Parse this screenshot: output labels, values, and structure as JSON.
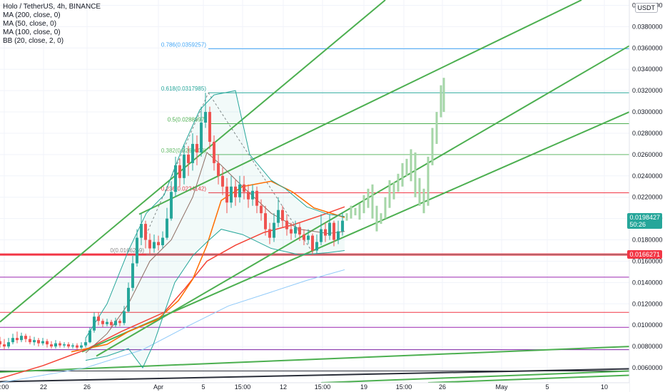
{
  "legend": {
    "title": "Holo / TetherUS, 4h, BINANCE",
    "indicators": [
      "MA (200, close, 0)",
      "MA (50, close, 0)",
      "MA (100, close, 0)",
      "BB (20, close, 2, 0)"
    ]
  },
  "currency_label": "USDT",
  "chart_data": {
    "type": "candlestick",
    "y_ticks": [
      "0.0400000",
      "0.0380000",
      "0.0360000",
      "0.0340000",
      "0.0320000",
      "0.0300000",
      "0.0280000",
      "0.0260000",
      "0.0240000",
      "0.0220000",
      "0.0200000",
      "0.0180000",
      "0.0160000",
      "0.0140000",
      "0.0120000",
      "0.0100000",
      "0.0080000",
      "0.0060000"
    ],
    "y_tick_values": [
      0.04,
      0.038,
      0.036,
      0.034,
      0.032,
      0.03,
      0.028,
      0.026,
      0.024,
      0.022,
      0.02,
      0.018,
      0.016,
      0.014,
      0.012,
      0.01,
      0.008,
      0.006
    ],
    "x_ticks": [
      ":00",
      "22",
      "26",
      "Apr",
      "5",
      "15:00",
      "12",
      "15:00",
      "19",
      "15:00",
      "26",
      "May",
      "5",
      "10"
    ],
    "ylim": [
      0.0046,
      0.0405
    ],
    "current_price": {
      "value": "0.0198427",
      "countdown": "50:26",
      "color": "#26a69a"
    },
    "support_price": {
      "value": "0.0166271",
      "color": "#f23645"
    },
    "fib_levels": [
      {
        "label": "0.786(0.0359257)",
        "value": 0.0359257,
        "color": "#42a5f5"
      },
      {
        "label": "0.618(0.0317985)",
        "value": 0.0317985,
        "color": "#26a69a"
      },
      {
        "label": "0.5(0.0288997)",
        "value": 0.0288997,
        "color": "#4caf50"
      },
      {
        "label": "0.382(0.0260009)",
        "value": 0.0260009,
        "color": "#66bb6a"
      },
      {
        "label": "0.236(0.0224142)",
        "value": 0.0224142,
        "color": "#f23645"
      },
      {
        "label": "0(0.0166269)",
        "value": 0.0166269,
        "color": "#888888"
      }
    ],
    "horizontal_levels": [
      {
        "value": 0.0166271,
        "color": "#f23645"
      },
      {
        "value": 0.0145,
        "color": "#9c27b0"
      },
      {
        "value": 0.0112,
        "color": "#f23645"
      },
      {
        "value": 0.0098,
        "color": "#9c27b0"
      },
      {
        "value": 0.0077,
        "color": "#7b1fa2"
      },
      {
        "value": 0.0057,
        "color": "#2a2e39"
      }
    ],
    "series": [
      {
        "name": "MA (200, close, 0)",
        "color": "#90caf9",
        "points": [
          [
            0,
            0.0046
          ],
          [
            120,
            0.006
          ],
          [
            200,
            0.0077
          ],
          [
            260,
            0.0098
          ],
          [
            320,
            0.0118
          ],
          [
            380,
            0.0131
          ],
          [
            430,
            0.0142
          ],
          [
            483,
            0.0152
          ]
        ]
      },
      {
        "name": "MA (50, close, 0)",
        "color": "#f44336",
        "points": [
          [
            0,
            0.005
          ],
          [
            60,
            0.0062
          ],
          [
            120,
            0.0077
          ],
          [
            170,
            0.0094
          ],
          [
            230,
            0.0112
          ],
          [
            260,
            0.0135
          ],
          [
            290,
            0.016
          ],
          [
            330,
            0.0175
          ],
          [
            370,
            0.0187
          ],
          [
            410,
            0.0194
          ],
          [
            450,
            0.0203
          ],
          [
            483,
            0.0211
          ]
        ]
      },
      {
        "name": "MA (100, close, 0)",
        "color": "#ff6d00",
        "points": [
          [
            100,
            0.0075
          ],
          [
            150,
            0.0082
          ],
          [
            180,
            0.0094
          ],
          [
            220,
            0.0105
          ],
          [
            250,
            0.0123
          ],
          [
            270,
            0.0143
          ],
          [
            290,
            0.0175
          ],
          [
            310,
            0.0217
          ],
          [
            340,
            0.023
          ],
          [
            380,
            0.0235
          ],
          [
            410,
            0.0225
          ],
          [
            440,
            0.021
          ],
          [
            483,
            0.0201
          ]
        ]
      },
      {
        "name": "BB (20, close, 2, 0) middle",
        "color": "#8d6e63",
        "points": [
          [
            120,
            0.0074
          ],
          [
            150,
            0.0092
          ],
          [
            180,
            0.012
          ],
          [
            210,
            0.016
          ],
          [
            240,
            0.018
          ],
          [
            270,
            0.022
          ],
          [
            290,
            0.0262
          ],
          [
            310,
            0.025
          ],
          [
            340,
            0.023
          ],
          [
            380,
            0.0205
          ],
          [
            420,
            0.019
          ],
          [
            460,
            0.0186
          ],
          [
            483,
            0.0188
          ]
        ]
      },
      {
        "name": "BB (20, close, 2, 0) upper",
        "color": "#26a69a",
        "points": [
          [
            120,
            0.0088
          ],
          [
            150,
            0.012
          ],
          [
            180,
            0.017
          ],
          [
            205,
            0.0205
          ],
          [
            230,
            0.0222
          ],
          [
            255,
            0.0265
          ],
          [
            280,
            0.0302
          ],
          [
            300,
            0.0316
          ],
          [
            330,
            0.032
          ],
          [
            350,
            0.026
          ],
          [
            380,
            0.0236
          ],
          [
            400,
            0.0228
          ],
          [
            430,
            0.0211
          ],
          [
            460,
            0.0204
          ],
          [
            483,
            0.0202
          ]
        ]
      },
      {
        "name": "BB (20, close, 2, 0) lower",
        "color": "#26a69a",
        "points": [
          [
            120,
            0.0067
          ],
          [
            150,
            0.0071
          ],
          [
            180,
            0.0078
          ],
          [
            200,
            0.006
          ],
          [
            215,
            0.0082
          ],
          [
            245,
            0.014
          ],
          [
            270,
            0.0165
          ],
          [
            290,
            0.0178
          ],
          [
            310,
            0.019
          ],
          [
            340,
            0.0185
          ],
          [
            380,
            0.0172
          ],
          [
            420,
            0.0166
          ],
          [
            460,
            0.0168
          ],
          [
            483,
            0.017
          ]
        ]
      }
    ],
    "channel_lines": [
      {
        "from": [
          0,
          0.0103
        ],
        "to": [
          540,
          0.0405
        ],
        "color": "#4caf50"
      },
      {
        "from": [
          195,
          0.0204
        ],
        "to": [
          815,
          0.0405
        ],
        "color": "#4caf50"
      },
      {
        "from": [
          135,
          0.0071
        ],
        "to": [
          882,
          0.0362
        ],
        "color": "#4caf50"
      },
      {
        "from": [
          115,
          0.0075
        ],
        "to": [
          882,
          0.03
        ],
        "color": "#4caf50"
      },
      {
        "from": [
          0,
          0.0056
        ],
        "to": [
          882,
          0.008
        ],
        "color": "#4caf50"
      },
      {
        "from": [
          450,
          0.0046
        ],
        "to": [
          882,
          0.0057
        ],
        "color": "#4caf50"
      },
      {
        "from": [
          0,
          0.0047
        ],
        "to": [
          882,
          0.0059
        ],
        "color": "#2a2e39"
      },
      {
        "from": [
          600,
          0.0046
        ],
        "to": [
          882,
          0.0053
        ],
        "color": "#4caf50"
      }
    ],
    "candles": [
      [
        0,
        0.0085,
        0.0082,
        0.0089,
        0.0079
      ],
      [
        6,
        0.0082,
        0.008,
        0.0087,
        0.0077
      ],
      [
        12,
        0.008,
        0.0084,
        0.0088,
        0.0078
      ],
      [
        18,
        0.0084,
        0.0088,
        0.0092,
        0.0082
      ],
      [
        24,
        0.0088,
        0.0086,
        0.0094,
        0.0083
      ],
      [
        30,
        0.0086,
        0.009,
        0.0093,
        0.0084
      ],
      [
        36,
        0.009,
        0.0087,
        0.0092,
        0.0084
      ],
      [
        42,
        0.0087,
        0.0084,
        0.009,
        0.0082
      ],
      [
        48,
        0.0084,
        0.0086,
        0.0089,
        0.0081
      ],
      [
        54,
        0.0086,
        0.0083,
        0.0088,
        0.008
      ],
      [
        60,
        0.0083,
        0.0085,
        0.0088,
        0.0081
      ],
      [
        66,
        0.0085,
        0.0082,
        0.0087,
        0.0079
      ],
      [
        72,
        0.0082,
        0.008,
        0.0085,
        0.0078
      ],
      [
        78,
        0.008,
        0.0083,
        0.0086,
        0.0078
      ],
      [
        84,
        0.0083,
        0.0081,
        0.0085,
        0.0079
      ],
      [
        90,
        0.0081,
        0.0082,
        0.0084,
        0.0079
      ],
      [
        96,
        0.0082,
        0.008,
        0.0084,
        0.0078
      ],
      [
        102,
        0.008,
        0.0081,
        0.0083,
        0.0078
      ],
      [
        108,
        0.0081,
        0.0079,
        0.0083,
        0.0077
      ],
      [
        114,
        0.0079,
        0.0081,
        0.0084,
        0.0077
      ],
      [
        120,
        0.0081,
        0.0084,
        0.0088,
        0.0079
      ],
      [
        126,
        0.0084,
        0.0095,
        0.0098,
        0.0083
      ],
      [
        132,
        0.0095,
        0.0108,
        0.0112,
        0.0093
      ],
      [
        138,
        0.0108,
        0.0104,
        0.0112,
        0.01
      ],
      [
        144,
        0.0104,
        0.0101,
        0.0106,
        0.0098
      ],
      [
        150,
        0.0101,
        0.0103,
        0.0106,
        0.0099
      ],
      [
        156,
        0.0103,
        0.01,
        0.0105,
        0.0098
      ],
      [
        162,
        0.01,
        0.0104,
        0.0107,
        0.0098
      ],
      [
        168,
        0.0104,
        0.0102,
        0.0106,
        0.0099
      ],
      [
        174,
        0.0102,
        0.0113,
        0.0118,
        0.01
      ],
      [
        180,
        0.0113,
        0.0135,
        0.014,
        0.0112
      ],
      [
        186,
        0.0135,
        0.0158,
        0.0165,
        0.0132
      ],
      [
        192,
        0.0158,
        0.0182,
        0.019,
        0.0155
      ],
      [
        198,
        0.0182,
        0.0195,
        0.0205,
        0.0175
      ],
      [
        204,
        0.0195,
        0.018,
        0.0198,
        0.0172
      ],
      [
        210,
        0.018,
        0.0172,
        0.0186,
        0.0166
      ],
      [
        216,
        0.0172,
        0.0178,
        0.0185,
        0.0168
      ],
      [
        222,
        0.0178,
        0.0175,
        0.0184,
        0.017
      ],
      [
        228,
        0.0175,
        0.0182,
        0.0188,
        0.0172
      ],
      [
        234,
        0.0182,
        0.02,
        0.021,
        0.018
      ],
      [
        240,
        0.02,
        0.0225,
        0.0235,
        0.0198
      ],
      [
        246,
        0.0225,
        0.025,
        0.0258,
        0.022
      ],
      [
        252,
        0.025,
        0.0238,
        0.0256,
        0.023
      ],
      [
        258,
        0.0238,
        0.026,
        0.027,
        0.0232
      ],
      [
        264,
        0.026,
        0.0252,
        0.0268,
        0.024
      ],
      [
        270,
        0.0252,
        0.027,
        0.028,
        0.0245
      ],
      [
        276,
        0.027,
        0.0262,
        0.0278,
        0.025
      ],
      [
        282,
        0.0262,
        0.029,
        0.0305,
        0.0258
      ],
      [
        288,
        0.029,
        0.03,
        0.0318,
        0.0285
      ],
      [
        294,
        0.03,
        0.0272,
        0.0305,
        0.0265
      ],
      [
        300,
        0.0272,
        0.0252,
        0.0278,
        0.0245
      ],
      [
        306,
        0.0252,
        0.024,
        0.026,
        0.0232
      ],
      [
        312,
        0.024,
        0.023,
        0.0248,
        0.0222
      ],
      [
        318,
        0.023,
        0.0215,
        0.0238,
        0.0205
      ],
      [
        324,
        0.0215,
        0.023,
        0.024,
        0.021
      ],
      [
        330,
        0.023,
        0.022,
        0.0236,
        0.0212
      ],
      [
        336,
        0.022,
        0.0232,
        0.024,
        0.0215
      ],
      [
        342,
        0.0232,
        0.0225,
        0.024,
        0.0218
      ],
      [
        348,
        0.0225,
        0.0218,
        0.0232,
        0.021
      ],
      [
        354,
        0.0218,
        0.0226,
        0.0232,
        0.0212
      ],
      [
        360,
        0.0226,
        0.0212,
        0.023,
        0.0205
      ],
      [
        366,
        0.0212,
        0.0205,
        0.0218,
        0.0198
      ],
      [
        372,
        0.0205,
        0.019,
        0.0212,
        0.0184
      ],
      [
        378,
        0.019,
        0.0182,
        0.0196,
        0.0176
      ],
      [
        384,
        0.0182,
        0.0196,
        0.0205,
        0.0178
      ],
      [
        390,
        0.0196,
        0.0208,
        0.022,
        0.0192
      ],
      [
        396,
        0.0208,
        0.0198,
        0.0212,
        0.0192
      ],
      [
        402,
        0.0198,
        0.019,
        0.0204,
        0.0184
      ],
      [
        408,
        0.019,
        0.0186,
        0.0196,
        0.018
      ],
      [
        414,
        0.0186,
        0.0192,
        0.0198,
        0.0182
      ],
      [
        420,
        0.0192,
        0.0185,
        0.0196,
        0.0179
      ],
      [
        426,
        0.0185,
        0.018,
        0.019,
        0.0175
      ],
      [
        432,
        0.018,
        0.0184,
        0.019,
        0.0176
      ],
      [
        438,
        0.0184,
        0.017,
        0.0186,
        0.0166
      ],
      [
        444,
        0.017,
        0.0178,
        0.0185,
        0.0167
      ],
      [
        450,
        0.0178,
        0.019,
        0.0204,
        0.0175
      ],
      [
        456,
        0.019,
        0.0184,
        0.0196,
        0.0178
      ],
      [
        462,
        0.0184,
        0.0196,
        0.0204,
        0.018
      ],
      [
        468,
        0.0196,
        0.018,
        0.0198,
        0.0174
      ],
      [
        474,
        0.018,
        0.0188,
        0.0198,
        0.0176
      ],
      [
        480,
        0.0188,
        0.0198,
        0.0206,
        0.0184
      ]
    ],
    "projection": [
      [
        486,
        0.0198,
        0.0205
      ],
      [
        492,
        0.02,
        0.0212
      ],
      [
        498,
        0.0203,
        0.021
      ],
      [
        504,
        0.0199,
        0.0214
      ],
      [
        510,
        0.0205,
        0.0222
      ],
      [
        516,
        0.021,
        0.0228
      ],
      [
        522,
        0.02,
        0.0232
      ],
      [
        528,
        0.0188,
        0.0212
      ],
      [
        534,
        0.0195,
        0.0205
      ],
      [
        540,
        0.02,
        0.022
      ],
      [
        546,
        0.021,
        0.0236
      ],
      [
        552,
        0.0218,
        0.0234
      ],
      [
        558,
        0.0225,
        0.0242
      ],
      [
        564,
        0.023,
        0.0252
      ],
      [
        570,
        0.024,
        0.0256
      ],
      [
        576,
        0.0235,
        0.0265
      ],
      [
        582,
        0.022,
        0.0262
      ],
      [
        588,
        0.0212,
        0.0238
      ],
      [
        594,
        0.0205,
        0.0228
      ],
      [
        600,
        0.0212,
        0.0258
      ],
      [
        606,
        0.025,
        0.0285
      ],
      [
        612,
        0.027,
        0.03
      ],
      [
        618,
        0.0295,
        0.0325
      ],
      [
        622,
        0.03,
        0.0332
      ]
    ]
  }
}
